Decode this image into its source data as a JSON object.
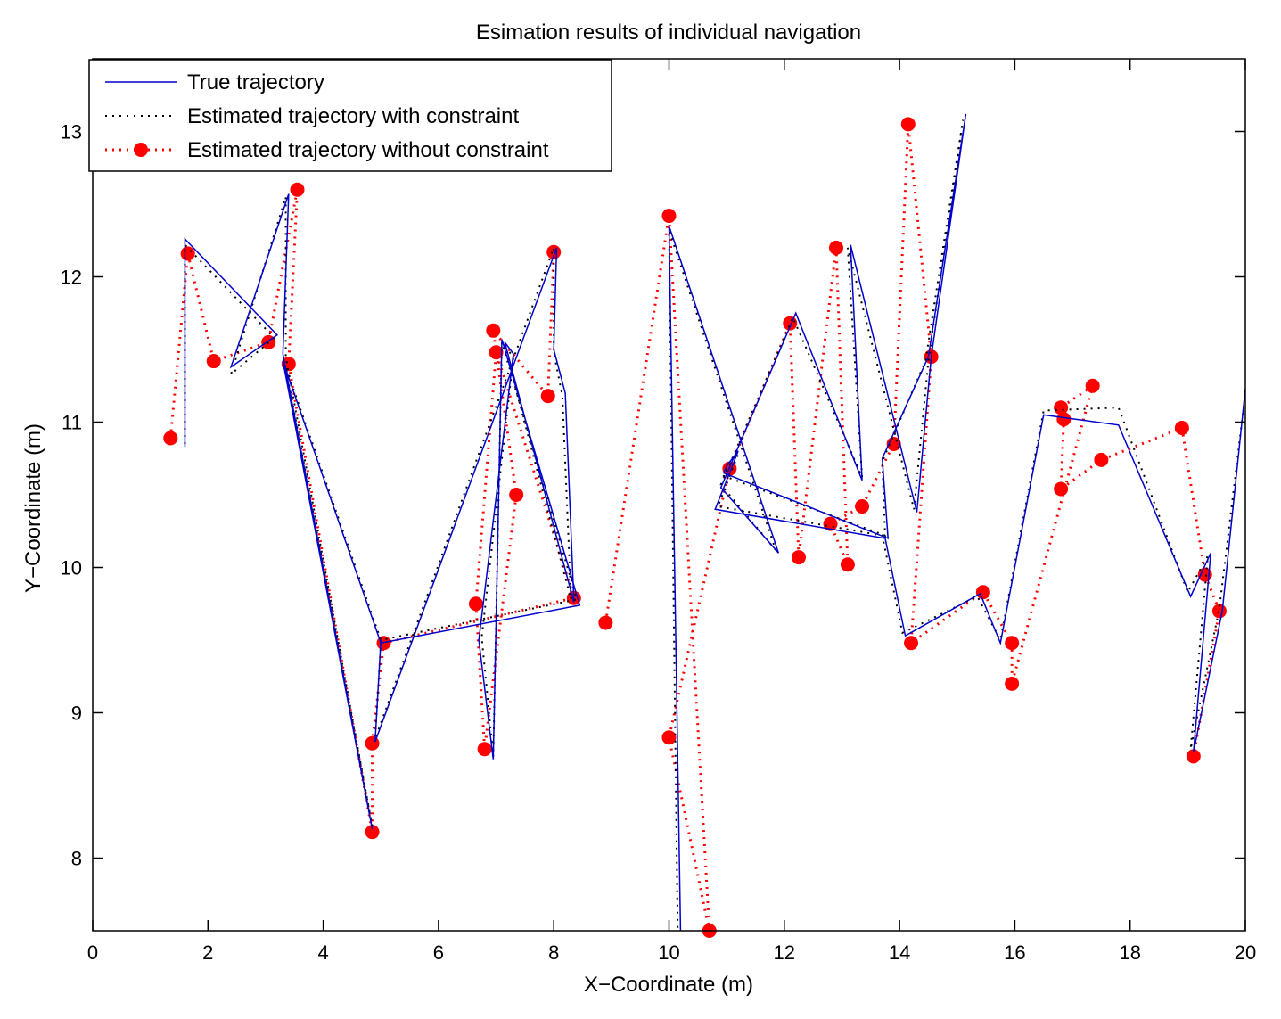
{
  "chart_data": {
    "type": "line",
    "title": "Esimation results of individual navigation",
    "xlabel": "X−Coordinate (m)",
    "ylabel": "Y−Coordinate (m)",
    "xlim": [
      0,
      20
    ],
    "ylim": [
      7.5,
      13.5
    ],
    "xticks": [
      0,
      2,
      4,
      6,
      8,
      10,
      12,
      14,
      16,
      18,
      20
    ],
    "xtick_labels": [
      "0",
      "2",
      "4",
      "6",
      "8",
      "10",
      "12",
      "14",
      "16",
      "18",
      "20"
    ],
    "yticks": [
      8,
      9,
      10,
      11,
      12,
      13
    ],
    "ytick_labels": [
      "8",
      "9",
      "10",
      "11",
      "12",
      "13"
    ],
    "grid": false,
    "legend_position": "top-left",
    "colors": {
      "true": "#0000cc",
      "constrained": "#000000",
      "unconstrained": "#ff0000"
    },
    "series": [
      {
        "name": "True trajectory",
        "style": "solid",
        "x": [
          1.6,
          1.6,
          3.2,
          2.4,
          3.4,
          3.3,
          4.85,
          3.3,
          5.0,
          8.45,
          7.1,
          6.95,
          6.7,
          7.3,
          7.15,
          8.35,
          8.2,
          8.0,
          8.05,
          4.9,
          5.0
        ],
        "y": [
          10.83,
          12.26,
          11.6,
          11.38,
          12.57,
          11.47,
          8.2,
          11.42,
          9.48,
          9.74,
          11.57,
          8.68,
          9.5,
          11.47,
          11.55,
          9.76,
          11.2,
          11.5,
          12.2,
          8.8,
          9.5
        ]
      },
      {
        "name": "Estimated trajectory with constraint",
        "style": "dotted",
        "x": [
          1.6,
          1.6,
          3.15,
          2.4,
          3.35,
          3.35,
          4.85,
          3.35,
          5.0,
          8.4,
          7.1,
          6.95,
          6.75,
          7.3,
          7.15,
          8.3,
          8.15,
          8.0,
          8.0,
          4.9,
          5.0
        ],
        "y": [
          10.85,
          12.22,
          11.58,
          11.33,
          12.55,
          11.45,
          8.22,
          11.38,
          9.5,
          9.78,
          11.55,
          8.7,
          9.52,
          11.45,
          11.52,
          9.78,
          11.18,
          11.48,
          12.2,
          8.82,
          9.48
        ]
      },
      {
        "name": "Estimated trajectory without constraint",
        "style": "dotted-marker",
        "marker": "circle",
        "x": [
          1.35,
          1.65,
          2.1,
          3.05,
          3.55,
          3.4,
          4.85,
          4.85,
          5.05,
          8.35,
          7.0,
          6.65,
          6.8,
          7.35,
          6.95,
          7.9,
          8.0
        ],
        "y": [
          10.89,
          12.16,
          11.42,
          11.55,
          12.6,
          11.4,
          8.18,
          8.79,
          9.48,
          9.79,
          11.48,
          9.75,
          8.75,
          10.5,
          11.63,
          11.18,
          12.17
        ]
      },
      {
        "name": "True trajectory (segment 2)",
        "style": "solid",
        "x": [
          10.2,
          10.0,
          11.9,
          10.9,
          12.2,
          13.35,
          13.15,
          14.3,
          14.55,
          15.15,
          14.5,
          13.7,
          13.8,
          10.95,
          11.0,
          11.2,
          10.8,
          13.75,
          14.1,
          15.4,
          15.75,
          16.5,
          17.8,
          19.05,
          19.4,
          19.1,
          19.6,
          20.0
        ],
        "y": [
          7.5,
          12.35,
          10.1,
          10.55,
          11.75,
          10.6,
          12.22,
          10.38,
          11.45,
          13.12,
          11.45,
          10.75,
          10.2,
          10.65,
          10.7,
          10.8,
          10.4,
          10.2,
          9.53,
          9.82,
          9.48,
          11.05,
          10.98,
          9.8,
          10.1,
          8.73,
          9.7,
          11.23
        ]
      },
      {
        "name": "Estimated trajectory with constraint (segment 2)",
        "style": "dotted",
        "x": [
          10.15,
          10.0,
          11.85,
          10.9,
          12.15,
          13.35,
          13.1,
          14.25,
          14.5,
          15.1,
          14.45,
          13.7,
          13.75,
          10.95,
          11.0,
          11.2,
          10.85,
          13.7,
          14.05,
          15.35,
          15.75,
          16.5,
          17.8,
          19.0,
          19.35,
          19.05,
          19.55,
          20.0
        ],
        "y": [
          7.52,
          12.32,
          10.12,
          10.57,
          11.72,
          10.62,
          12.2,
          10.4,
          11.42,
          13.08,
          11.42,
          10.73,
          10.22,
          10.63,
          10.68,
          10.78,
          10.42,
          10.22,
          9.55,
          9.8,
          9.5,
          11.08,
          11.1,
          9.83,
          10.08,
          8.75,
          9.72,
          11.2
        ]
      },
      {
        "name": "Estimated trajectory without constraint (segment 2)",
        "style": "dotted-marker",
        "marker": "circle",
        "x": [
          8.9,
          10.0,
          10.7,
          10.0,
          11.05,
          12.1,
          12.25,
          12.9,
          13.1,
          12.8,
          13.35,
          13.9,
          14.15,
          14.55,
          14.2,
          15.45,
          15.95,
          15.95,
          17.35,
          16.8,
          16.85,
          16.8,
          17.5,
          18.9,
          19.3,
          19.55,
          19.1
        ],
        "y": [
          9.62,
          12.42,
          7.5,
          8.83,
          10.68,
          11.68,
          10.07,
          12.2,
          10.02,
          10.3,
          10.42,
          10.85,
          13.05,
          11.45,
          9.48,
          9.83,
          9.48,
          9.2,
          11.25,
          11.1,
          11.02,
          10.54,
          10.74,
          10.96,
          9.95,
          9.7,
          8.7
        ]
      }
    ],
    "legend": [
      {
        "label": "True trajectory",
        "series_style": "solid"
      },
      {
        "label": "Estimated trajectory with constraint",
        "series_style": "dotted"
      },
      {
        "label": "Estimated trajectory without constraint",
        "series_style": "dotted-marker"
      }
    ]
  }
}
